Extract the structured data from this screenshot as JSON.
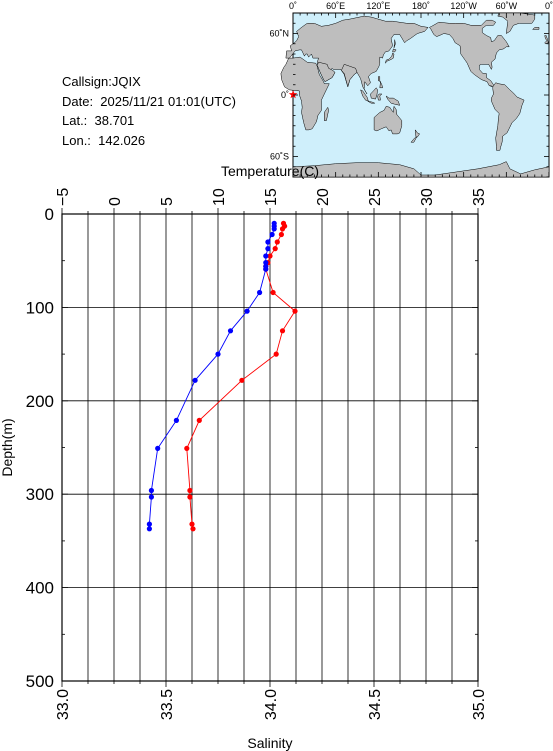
{
  "info": {
    "callsign": "Callsign:JQIX",
    "date": "Date:  2025/11/21 01:01(UTC)",
    "lat": "Lat.:  38.701",
    "lon": "Lon.:  142.026"
  },
  "map": {
    "lon_labels": [
      "0˚",
      "60˚E",
      "120˚E",
      "180˚",
      "120˚W",
      "60˚W",
      "0˚"
    ],
    "lat_labels": [
      "60˚N",
      "0˚",
      "60˚S"
    ],
    "ocean_color": "#cfeffb",
    "land_color": "#bebebe",
    "marker_color": "#ff0000"
  },
  "chart_data": {
    "type": "line",
    "xlabel_top": "Temperature(C)",
    "xlabel_bottom": "Salinity",
    "ylabel": "Depth(m)",
    "temperature_ticks": [
      "−5",
      "0",
      "5",
      "10",
      "15",
      "20",
      "25",
      "30",
      "35"
    ],
    "salinity_ticks": [
      "33.0",
      "33.5",
      "34.0",
      "34.5",
      "35.0"
    ],
    "depth_ticks": [
      "0",
      "100",
      "200",
      "300",
      "400",
      "500"
    ],
    "temperature_range": [
      -5,
      35
    ],
    "salinity_range": [
      33.0,
      35.0
    ],
    "depth_range": [
      0,
      500
    ],
    "grid": true,
    "series": [
      {
        "color": "#ff0000",
        "points": [
          [
            16.3,
            10
          ],
          [
            16.4,
            13
          ],
          [
            16.2,
            16
          ],
          [
            16.1,
            22
          ],
          [
            15.7,
            30
          ],
          [
            15.5,
            37
          ],
          [
            15.0,
            45
          ],
          [
            14.8,
            52
          ],
          [
            14.6,
            56
          ],
          [
            14.6,
            59
          ],
          [
            15.3,
            84
          ],
          [
            17.4,
            104
          ],
          [
            16.2,
            125
          ],
          [
            15.6,
            150
          ],
          [
            12.3,
            178
          ],
          [
            8.2,
            221
          ],
          [
            7.0,
            251
          ],
          [
            7.3,
            296
          ],
          [
            7.3,
            303
          ],
          [
            7.5,
            332
          ],
          [
            7.6,
            337
          ]
        ]
      },
      {
        "color": "#0000ff",
        "points": [
          [
            34.02,
            10
          ],
          [
            34.02,
            13
          ],
          [
            34.02,
            16
          ],
          [
            34.01,
            22
          ],
          [
            33.99,
            30
          ],
          [
            33.99,
            37
          ],
          [
            33.98,
            45
          ],
          [
            33.98,
            52
          ],
          [
            33.98,
            56
          ],
          [
            33.98,
            59
          ],
          [
            33.95,
            84
          ],
          [
            33.89,
            104
          ],
          [
            33.81,
            125
          ],
          [
            33.75,
            150
          ],
          [
            33.64,
            178
          ],
          [
            33.55,
            221
          ],
          [
            33.46,
            251
          ],
          [
            33.43,
            296
          ],
          [
            33.43,
            303
          ],
          [
            33.42,
            332
          ],
          [
            33.42,
            337
          ]
        ]
      }
    ]
  }
}
